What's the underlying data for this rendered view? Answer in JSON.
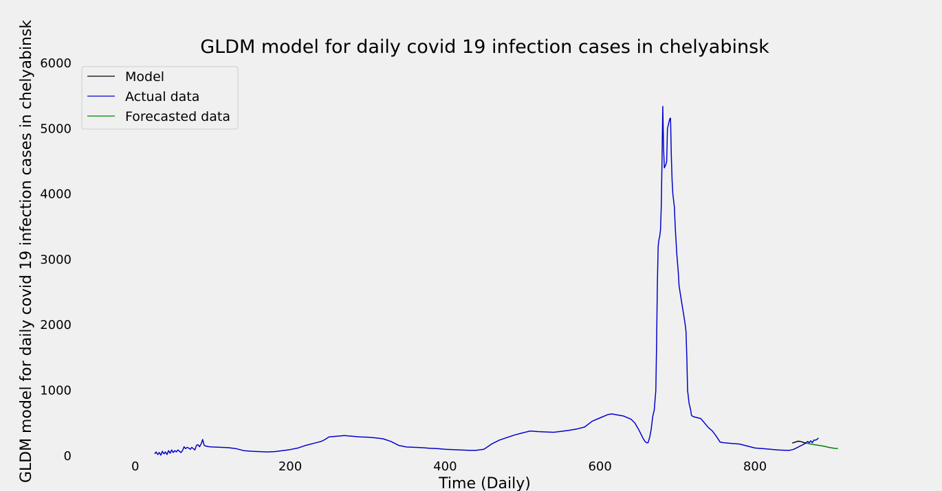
{
  "chart_data": {
    "type": "line",
    "title": "GLDM model for daily covid 19 infection cases in chelyabinsk",
    "xlabel": "Time (Daily)",
    "ylabel": "GLDM model for daily covid 19 infection cases in chelyabinsk",
    "xlim": [
      -45,
      950
    ],
    "ylim": [
      -170,
      6000
    ],
    "x_ticks": [
      0,
      200,
      400,
      600,
      800
    ],
    "y_ticks": [
      0,
      1000,
      2000,
      3000,
      4000,
      5000,
      6000
    ],
    "grid": false,
    "legend_position": "top-left",
    "series": [
      {
        "name": "Model",
        "color": "#000000",
        "points": [
          [
            848,
            195
          ],
          [
            852,
            210
          ],
          [
            856,
            225
          ],
          [
            860,
            215
          ],
          [
            864,
            200
          ],
          [
            866,
            195
          ]
        ]
      },
      {
        "name": "Actual data",
        "color": "#0000cc",
        "points": [
          [
            25,
            30
          ],
          [
            27,
            60
          ],
          [
            29,
            20
          ],
          [
            31,
            50
          ],
          [
            33,
            10
          ],
          [
            35,
            70
          ],
          [
            37,
            30
          ],
          [
            39,
            60
          ],
          [
            41,
            20
          ],
          [
            43,
            80
          ],
          [
            45,
            40
          ],
          [
            47,
            90
          ],
          [
            49,
            50
          ],
          [
            51,
            80
          ],
          [
            53,
            60
          ],
          [
            55,
            90
          ],
          [
            57,
            70
          ],
          [
            59,
            50
          ],
          [
            61,
            80
          ],
          [
            63,
            140
          ],
          [
            65,
            110
          ],
          [
            67,
            130
          ],
          [
            69,
            120
          ],
          [
            71,
            100
          ],
          [
            73,
            130
          ],
          [
            75,
            110
          ],
          [
            77,
            90
          ],
          [
            79,
            160
          ],
          [
            81,
            170
          ],
          [
            83,
            140
          ],
          [
            85,
            180
          ],
          [
            87,
            250
          ],
          [
            89,
            160
          ],
          [
            91,
            150
          ],
          [
            95,
            140
          ],
          [
            100,
            135
          ],
          [
            110,
            130
          ],
          [
            120,
            125
          ],
          [
            130,
            110
          ],
          [
            140,
            80
          ],
          [
            150,
            70
          ],
          [
            160,
            65
          ],
          [
            170,
            60
          ],
          [
            180,
            65
          ],
          [
            190,
            80
          ],
          [
            200,
            95
          ],
          [
            210,
            120
          ],
          [
            220,
            160
          ],
          [
            230,
            190
          ],
          [
            240,
            220
          ],
          [
            245,
            250
          ],
          [
            250,
            290
          ],
          [
            260,
            300
          ],
          [
            270,
            310
          ],
          [
            280,
            300
          ],
          [
            290,
            290
          ],
          [
            300,
            285
          ],
          [
            310,
            275
          ],
          [
            320,
            260
          ],
          [
            330,
            220
          ],
          [
            340,
            160
          ],
          [
            350,
            135
          ],
          [
            360,
            130
          ],
          [
            370,
            125
          ],
          [
            380,
            115
          ],
          [
            390,
            110
          ],
          [
            400,
            100
          ],
          [
            410,
            95
          ],
          [
            420,
            90
          ],
          [
            430,
            85
          ],
          [
            440,
            85
          ],
          [
            450,
            100
          ],
          [
            455,
            140
          ],
          [
            460,
            180
          ],
          [
            470,
            240
          ],
          [
            480,
            280
          ],
          [
            490,
            320
          ],
          [
            500,
            350
          ],
          [
            510,
            380
          ],
          [
            520,
            370
          ],
          [
            530,
            365
          ],
          [
            540,
            360
          ],
          [
            550,
            375
          ],
          [
            560,
            390
          ],
          [
            570,
            410
          ],
          [
            580,
            440
          ],
          [
            590,
            530
          ],
          [
            600,
            580
          ],
          [
            610,
            630
          ],
          [
            615,
            640
          ],
          [
            620,
            630
          ],
          [
            630,
            610
          ],
          [
            640,
            560
          ],
          [
            645,
            500
          ],
          [
            650,
            400
          ],
          [
            655,
            280
          ],
          [
            658,
            220
          ],
          [
            660,
            200
          ],
          [
            662,
            200
          ],
          [
            664,
            280
          ],
          [
            666,
            400
          ],
          [
            668,
            600
          ],
          [
            670,
            700
          ],
          [
            672,
            1000
          ],
          [
            673,
            1700
          ],
          [
            674,
            2600
          ],
          [
            675,
            3200
          ],
          [
            676,
            3300
          ],
          [
            677,
            3350
          ],
          [
            678,
            3450
          ],
          [
            679,
            3800
          ],
          [
            680,
            4500
          ],
          [
            681,
            5340
          ],
          [
            682,
            4700
          ],
          [
            683,
            4400
          ],
          [
            685,
            4450
          ],
          [
            686,
            4500
          ],
          [
            687,
            5000
          ],
          [
            688,
            5050
          ],
          [
            689,
            5100
          ],
          [
            690,
            5150
          ],
          [
            691,
            5160
          ],
          [
            692,
            4600
          ],
          [
            693,
            4200
          ],
          [
            694,
            4000
          ],
          [
            696,
            3800
          ],
          [
            697,
            3500
          ],
          [
            698,
            3300
          ],
          [
            699,
            3100
          ],
          [
            701,
            2800
          ],
          [
            702,
            2600
          ],
          [
            704,
            2450
          ],
          [
            706,
            2300
          ],
          [
            708,
            2150
          ],
          [
            710,
            2000
          ],
          [
            711,
            1900
          ],
          [
            712,
            1500
          ],
          [
            713,
            1000
          ],
          [
            715,
            800
          ],
          [
            717,
            700
          ],
          [
            718,
            620
          ],
          [
            720,
            600
          ],
          [
            730,
            570
          ],
          [
            735,
            500
          ],
          [
            740,
            430
          ],
          [
            745,
            380
          ],
          [
            750,
            300
          ],
          [
            755,
            210
          ],
          [
            760,
            200
          ],
          [
            770,
            190
          ],
          [
            780,
            180
          ],
          [
            790,
            150
          ],
          [
            800,
            120
          ],
          [
            810,
            110
          ],
          [
            820,
            100
          ],
          [
            830,
            90
          ],
          [
            840,
            85
          ],
          [
            845,
            85
          ],
          [
            850,
            100
          ],
          [
            855,
            130
          ],
          [
            860,
            160
          ],
          [
            865,
            190
          ],
          [
            868,
            220
          ],
          [
            870,
            200
          ],
          [
            872,
            230
          ],
          [
            874,
            200
          ],
          [
            876,
            240
          ],
          [
            878,
            240
          ],
          [
            880,
            250
          ],
          [
            882,
            275
          ]
        ]
      },
      {
        "name": "Forecasted data",
        "color": "#008000",
        "points": [
          [
            866,
            195
          ],
          [
            872,
            180
          ],
          [
            880,
            165
          ],
          [
            888,
            150
          ],
          [
            895,
            130
          ],
          [
            902,
            115
          ],
          [
            907,
            110
          ]
        ]
      }
    ]
  }
}
